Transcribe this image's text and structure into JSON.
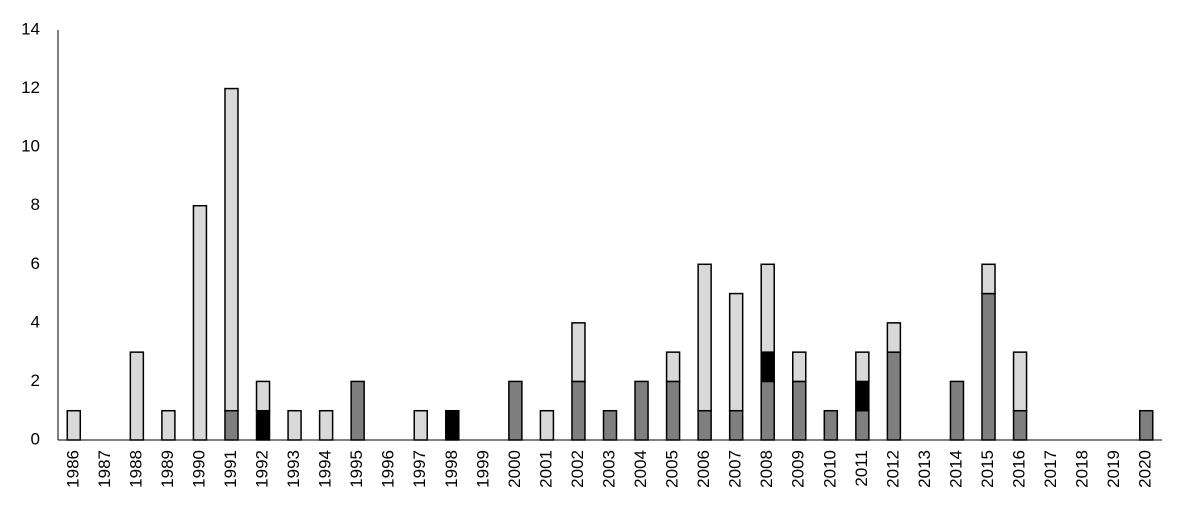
{
  "chart_data": {
    "type": "stacked_bar",
    "categories": [
      "1986",
      "1987",
      "1988",
      "1989",
      "1990",
      "1991",
      "1992",
      "1993",
      "1994",
      "1995",
      "1996",
      "1997",
      "1998",
      "1999",
      "2000",
      "2001",
      "2002",
      "2003",
      "2004",
      "2005",
      "2006",
      "2007",
      "2008",
      "2009",
      "2010",
      "2011",
      "2012",
      "2013",
      "2014",
      "2015",
      "2016",
      "2017",
      "2018",
      "2019",
      "2020"
    ],
    "series": [
      {
        "color": "#7f7f7f",
        "values": [
          0,
          0,
          0,
          0,
          0,
          1,
          0,
          0,
          0,
          2,
          0,
          0,
          0,
          0,
          2,
          0,
          2,
          1,
          2,
          2,
          1,
          1,
          2,
          2,
          1,
          1,
          3,
          0,
          2,
          5,
          1,
          0,
          0,
          0,
          1
        ]
      },
      {
        "color": "#000000",
        "values": [
          0,
          0,
          0,
          0,
          0,
          0,
          1,
          0,
          0,
          0,
          0,
          0,
          1,
          0,
          0,
          0,
          0,
          0,
          0,
          0,
          0,
          0,
          1,
          0,
          0,
          1,
          0,
          0,
          0,
          0,
          0,
          0,
          0,
          0,
          0
        ]
      },
      {
        "color": "#d9d9d9",
        "values": [
          1,
          0,
          3,
          1,
          8,
          11,
          1,
          1,
          1,
          0,
          0,
          1,
          0,
          0,
          0,
          1,
          2,
          0,
          0,
          1,
          5,
          4,
          3,
          1,
          0,
          1,
          1,
          0,
          0,
          1,
          2,
          0,
          0,
          0,
          0
        ]
      }
    ],
    "ylim": [
      0,
      14
    ],
    "yticks": [
      0,
      2,
      4,
      6,
      8,
      10,
      12,
      14
    ],
    "grid": false
  }
}
